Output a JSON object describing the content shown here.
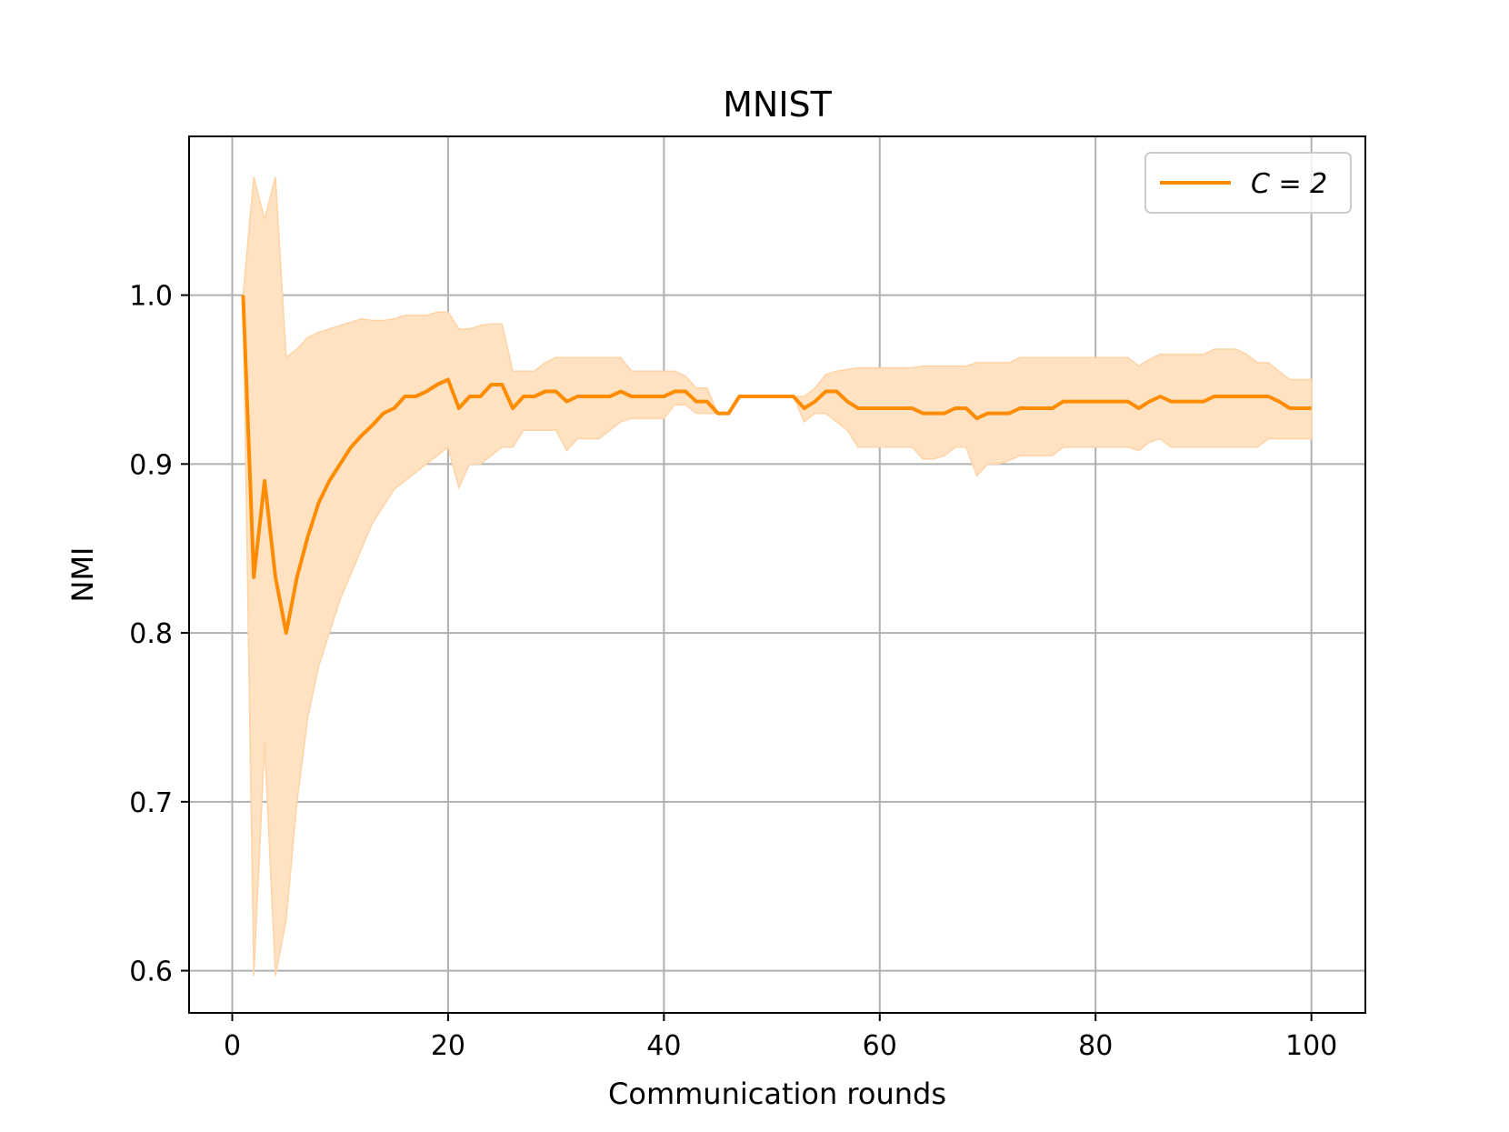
{
  "chart_data": {
    "type": "line",
    "title": "MNIST",
    "xlabel": "Communication rounds",
    "ylabel": "NMI",
    "xlim": [
      -4,
      105
    ],
    "ylim": [
      0.575,
      1.094
    ],
    "xticks": [
      0,
      20,
      40,
      60,
      80,
      100
    ],
    "yticks": [
      0.6,
      0.7,
      0.8,
      0.9,
      1.0
    ],
    "xtick_labels": [
      "0",
      "20",
      "40",
      "60",
      "80",
      "100"
    ],
    "ytick_labels": [
      "0.6",
      "0.7",
      "0.8",
      "0.9",
      "1.0"
    ],
    "grid": true,
    "legend_position": "top-right",
    "legend_label": "C = 2",
    "colors": {
      "line": "#ff8c00",
      "band": "#ffe2c2",
      "grid": "#b0b0b0"
    },
    "series": [
      {
        "name": "C = 2",
        "x": [
          1,
          2,
          3,
          4,
          5,
          6,
          7,
          8,
          9,
          10,
          11,
          12,
          13,
          14,
          15,
          16,
          17,
          18,
          19,
          20,
          21,
          22,
          23,
          24,
          25,
          26,
          27,
          28,
          29,
          30,
          31,
          32,
          33,
          34,
          35,
          36,
          37,
          38,
          39,
          40,
          41,
          42,
          43,
          44,
          45,
          46,
          47,
          48,
          49,
          50,
          51,
          52,
          53,
          54,
          55,
          56,
          57,
          58,
          59,
          60,
          61,
          62,
          63,
          64,
          65,
          66,
          67,
          68,
          69,
          70,
          71,
          72,
          73,
          74,
          75,
          76,
          77,
          78,
          79,
          80,
          81,
          82,
          83,
          84,
          85,
          86,
          87,
          88,
          89,
          90,
          91,
          92,
          93,
          94,
          95,
          96,
          97,
          98,
          99,
          100
        ],
        "y": [
          1.0,
          0.833,
          0.89,
          0.833,
          0.8,
          0.833,
          0.857,
          0.877,
          0.89,
          0.9,
          0.91,
          0.917,
          0.923,
          0.93,
          0.933,
          0.94,
          0.94,
          0.943,
          0.947,
          0.95,
          0.933,
          0.94,
          0.94,
          0.947,
          0.947,
          0.933,
          0.94,
          0.94,
          0.943,
          0.943,
          0.937,
          0.94,
          0.94,
          0.94,
          0.94,
          0.943,
          0.94,
          0.94,
          0.94,
          0.94,
          0.943,
          0.943,
          0.937,
          0.937,
          0.93,
          0.93,
          0.94,
          0.94,
          0.94,
          0.94,
          0.94,
          0.94,
          0.933,
          0.937,
          0.943,
          0.943,
          0.937,
          0.933,
          0.933,
          0.933,
          0.933,
          0.933,
          0.933,
          0.93,
          0.93,
          0.93,
          0.933,
          0.933,
          0.927,
          0.93,
          0.93,
          0.93,
          0.933,
          0.933,
          0.933,
          0.933,
          0.937,
          0.937,
          0.937,
          0.937,
          0.937,
          0.937,
          0.937,
          0.933,
          0.937,
          0.94,
          0.937,
          0.937,
          0.937,
          0.937,
          0.94,
          0.94,
          0.94,
          0.94,
          0.94,
          0.94,
          0.937,
          0.933,
          0.933,
          0.933
        ],
        "lower": [
          1.0,
          0.597,
          0.735,
          0.597,
          0.63,
          0.7,
          0.75,
          0.78,
          0.8,
          0.82,
          0.835,
          0.85,
          0.865,
          0.875,
          0.885,
          0.89,
          0.895,
          0.9,
          0.905,
          0.91,
          0.886,
          0.9,
          0.9,
          0.905,
          0.91,
          0.91,
          0.92,
          0.92,
          0.92,
          0.92,
          0.908,
          0.915,
          0.915,
          0.915,
          0.92,
          0.925,
          0.927,
          0.927,
          0.927,
          0.927,
          0.935,
          0.935,
          0.93,
          0.93,
          0.93,
          0.93,
          0.94,
          0.94,
          0.94,
          0.94,
          0.94,
          0.94,
          0.925,
          0.93,
          0.93,
          0.925,
          0.92,
          0.91,
          0.91,
          0.91,
          0.91,
          0.91,
          0.91,
          0.903,
          0.903,
          0.905,
          0.91,
          0.91,
          0.893,
          0.9,
          0.9,
          0.902,
          0.905,
          0.905,
          0.905,
          0.905,
          0.91,
          0.91,
          0.91,
          0.91,
          0.91,
          0.91,
          0.91,
          0.908,
          0.913,
          0.915,
          0.91,
          0.91,
          0.91,
          0.91,
          0.91,
          0.91,
          0.91,
          0.91,
          0.91,
          0.915,
          0.915,
          0.915,
          0.915,
          0.915
        ],
        "upper": [
          1.0,
          1.07,
          1.045,
          1.07,
          0.963,
          0.968,
          0.975,
          0.978,
          0.98,
          0.982,
          0.984,
          0.986,
          0.985,
          0.985,
          0.986,
          0.988,
          0.988,
          0.988,
          0.99,
          0.99,
          0.98,
          0.98,
          0.982,
          0.983,
          0.983,
          0.955,
          0.955,
          0.955,
          0.96,
          0.963,
          0.963,
          0.963,
          0.963,
          0.963,
          0.963,
          0.963,
          0.955,
          0.955,
          0.955,
          0.955,
          0.955,
          0.952,
          0.945,
          0.945,
          0.93,
          0.93,
          0.94,
          0.94,
          0.94,
          0.94,
          0.94,
          0.94,
          0.94,
          0.945,
          0.953,
          0.955,
          0.956,
          0.957,
          0.957,
          0.957,
          0.957,
          0.957,
          0.957,
          0.958,
          0.958,
          0.958,
          0.958,
          0.958,
          0.96,
          0.96,
          0.96,
          0.96,
          0.963,
          0.963,
          0.963,
          0.963,
          0.963,
          0.963,
          0.963,
          0.963,
          0.963,
          0.963,
          0.963,
          0.958,
          0.962,
          0.965,
          0.965,
          0.965,
          0.965,
          0.965,
          0.968,
          0.968,
          0.968,
          0.965,
          0.96,
          0.96,
          0.955,
          0.95,
          0.95,
          0.95
        ]
      }
    ]
  }
}
